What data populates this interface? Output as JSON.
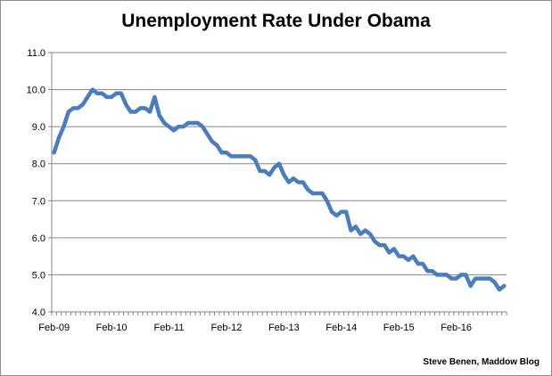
{
  "chart_data": {
    "type": "line",
    "title": "Unemployment Rate Under Obama",
    "xlabel": "",
    "ylabel": "",
    "ylim": [
      4.0,
      11.0
    ],
    "y_ticks": [
      "4.0",
      "5.0",
      "6.0",
      "7.0",
      "8.0",
      "9.0",
      "10.0",
      "11.0"
    ],
    "x_ticks": [
      "Feb-09",
      "Feb-10",
      "Feb-11",
      "Feb-12",
      "Feb-13",
      "Feb-14",
      "Feb-15",
      "Feb-16"
    ],
    "grid": true,
    "legend": "none",
    "line_color": "#4a7ebb",
    "source": "Steve Benen, Maddow Blog",
    "series": [
      {
        "x": [
          "2009-02",
          "2009-03",
          "2009-04",
          "2009-05",
          "2009-06",
          "2009-07",
          "2009-08",
          "2009-09",
          "2009-10",
          "2009-11",
          "2009-12",
          "2010-01",
          "2010-02",
          "2010-03",
          "2010-04",
          "2010-05",
          "2010-06",
          "2010-07",
          "2010-08",
          "2010-09",
          "2010-10",
          "2010-11",
          "2010-12",
          "2011-01",
          "2011-02",
          "2011-03",
          "2011-04",
          "2011-05",
          "2011-06",
          "2011-07",
          "2011-08",
          "2011-09",
          "2011-10",
          "2011-11",
          "2011-12",
          "2012-01",
          "2012-02",
          "2012-03",
          "2012-04",
          "2012-05",
          "2012-06",
          "2012-07",
          "2012-08",
          "2012-09",
          "2012-10",
          "2012-11",
          "2012-12",
          "2013-01",
          "2013-02",
          "2013-03",
          "2013-04",
          "2013-05",
          "2013-06",
          "2013-07",
          "2013-08",
          "2013-09",
          "2013-10",
          "2013-11",
          "2013-12",
          "2014-01",
          "2014-02",
          "2014-03",
          "2014-04",
          "2014-05",
          "2014-06",
          "2014-07",
          "2014-08",
          "2014-09",
          "2014-10",
          "2014-11",
          "2014-12",
          "2015-01",
          "2015-02",
          "2015-03",
          "2015-04",
          "2015-05",
          "2015-06",
          "2015-07",
          "2015-08",
          "2015-09",
          "2015-10",
          "2015-11",
          "2015-12",
          "2016-01",
          "2016-02",
          "2016-03",
          "2016-04",
          "2016-05",
          "2016-06",
          "2016-07",
          "2016-08",
          "2016-09",
          "2016-10",
          "2016-11",
          "2016-12"
        ],
        "values": [
          8.3,
          8.7,
          9.0,
          9.4,
          9.5,
          9.5,
          9.6,
          9.8,
          10.0,
          9.9,
          9.9,
          9.8,
          9.8,
          9.9,
          9.9,
          9.6,
          9.4,
          9.4,
          9.5,
          9.5,
          9.4,
          9.8,
          9.3,
          9.1,
          9.0,
          8.9,
          9.0,
          9.0,
          9.1,
          9.1,
          9.1,
          9.0,
          8.8,
          8.6,
          8.5,
          8.3,
          8.3,
          8.2,
          8.2,
          8.2,
          8.2,
          8.2,
          8.1,
          7.8,
          7.8,
          7.7,
          7.9,
          8.0,
          7.7,
          7.5,
          7.6,
          7.5,
          7.5,
          7.3,
          7.2,
          7.2,
          7.2,
          7.0,
          6.7,
          6.6,
          6.7,
          6.7,
          6.2,
          6.3,
          6.1,
          6.2,
          6.1,
          5.9,
          5.8,
          5.8,
          5.6,
          5.7,
          5.5,
          5.5,
          5.4,
          5.5,
          5.3,
          5.3,
          5.1,
          5.1,
          5.0,
          5.0,
          5.0,
          4.9,
          4.9,
          5.0,
          5.0,
          4.7,
          4.9,
          4.9,
          4.9,
          4.9,
          4.8,
          4.6,
          4.7
        ]
      }
    ]
  }
}
